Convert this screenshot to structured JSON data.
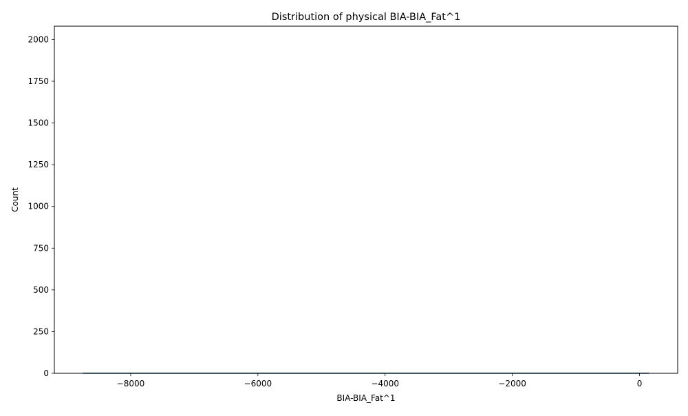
{
  "chart_data": {
    "type": "histogram",
    "title": "Distribution of physical BIA-BIA_Fat^1",
    "xlabel": "BIA-BIA_Fat^1",
    "ylabel": "Count",
    "xlim": [
      -9200,
      600
    ],
    "ylim": [
      0,
      2080
    ],
    "x_ticks": [
      -8000,
      -6000,
      -4000,
      -2000,
      0
    ],
    "x_tick_labels": [
      "−8000",
      "−6000",
      "−4000",
      "−2000",
      "0"
    ],
    "y_ticks": [
      0,
      250,
      500,
      750,
      1000,
      1250,
      1500,
      1750,
      2000
    ],
    "y_tick_labels": [
      "0",
      "250",
      "500",
      "750",
      "1000",
      "1250",
      "1500",
      "1750",
      "2000"
    ],
    "grid": false,
    "bar_color": "#1f77b4",
    "bins": [
      {
        "x0": -8750,
        "x1": 150,
        "count": 2
      }
    ],
    "kde_line": {
      "color": "#1f77b4",
      "x": [
        -8750,
        150
      ],
      "y": [
        0,
        0
      ]
    }
  }
}
